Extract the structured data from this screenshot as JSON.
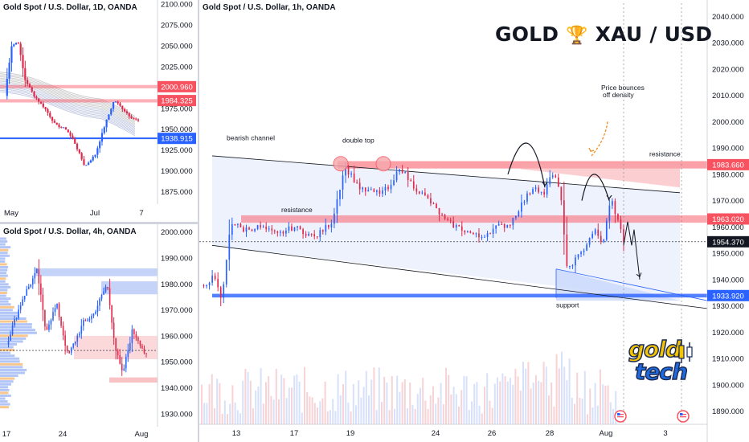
{
  "headline": {
    "left": "GOLD",
    "trophy": "🏆",
    "right": "XAU / USD"
  },
  "logo": {
    "line1": "gold",
    "line2": "tech"
  },
  "colors": {
    "up": "#2962ff",
    "down": "#e0294a",
    "red_line": "#f7525f",
    "blue_line": "#2962ff",
    "channel": "#2962ff"
  },
  "panels": {
    "daily": {
      "title": "Gold Spot / U.S. Dollar, 1D, OANDA",
      "y_ticks": [
        "2100.000",
        "2075.000",
        "2050.000",
        "2025.000",
        "2000.000",
        "1975.000",
        "1950.000",
        "1925.000",
        "1900.000",
        "1875.000"
      ],
      "x_ticks": [
        "May",
        "Jul",
        "7"
      ],
      "price_tags": [
        {
          "label": "2000.960",
          "color": "red"
        },
        {
          "label": "1984.325",
          "color": "red"
        },
        {
          "label": "1938.915",
          "color": "blue"
        }
      ]
    },
    "h4": {
      "title": "Gold Spot / U.S. Dollar, 4h, OANDA",
      "y_ticks": [
        "2000.000",
        "1990.000",
        "1980.000",
        "1970.000",
        "1960.000",
        "1950.000",
        "1940.000",
        "1930.000"
      ],
      "x_ticks": [
        "17",
        "24",
        "Aug"
      ]
    },
    "main": {
      "title": "Gold Spot / U.S. Dollar, 1h, OANDA",
      "y_ticks": [
        "2040.000",
        "2030.000",
        "2020.000",
        "2010.000",
        "2000.000",
        "1990.000",
        "1980.000",
        "1970.000",
        "1960.000",
        "1950.000",
        "1940.000",
        "1930.000",
        "1920.000",
        "1910.000",
        "1900.000",
        "1890.000"
      ],
      "x_ticks": [
        "13",
        "17",
        "19",
        "24",
        "26",
        "28",
        "Aug",
        "3"
      ],
      "price_tags": [
        {
          "label": "1983.660",
          "color": "red"
        },
        {
          "label": "1963.020",
          "color": "red"
        },
        {
          "label": "1954.370",
          "color": "dark"
        },
        {
          "label": "1933.920",
          "color": "blue"
        }
      ],
      "annotations": {
        "bearish_channel": "bearish channel",
        "double_top": "double top",
        "resistance_mid": "resistance",
        "resistance_right": "resistance",
        "support": "support",
        "bounce_1": "Price bounces",
        "bounce_2": "off density"
      }
    }
  },
  "chart_data": [
    {
      "type": "candlestick",
      "title": "Gold Spot / U.S. Dollar, 1D, OANDA",
      "ylim": [
        1860,
        2105
      ],
      "levels": [
        2000.96,
        1984.325,
        1938.915
      ]
    },
    {
      "type": "candlestick",
      "title": "Gold Spot / U.S. Dollar, 4h, OANDA",
      "ylim": [
        1925,
        2003
      ]
    },
    {
      "type": "candlestick",
      "title": "Gold Spot / U.S. Dollar, 1h, OANDA",
      "ylim": [
        1885,
        2045
      ],
      "levels": {
        "resistance_upper": 1983.66,
        "resistance_lower": 1963.02,
        "current": 1954.37,
        "support": 1933.92
      }
    }
  ]
}
